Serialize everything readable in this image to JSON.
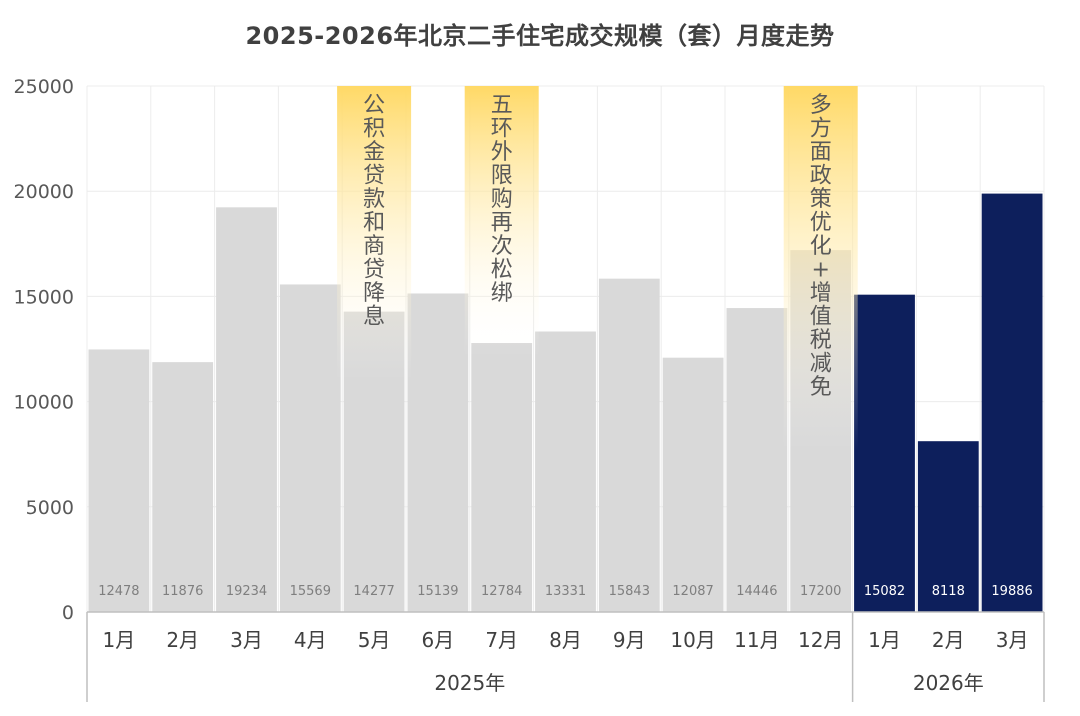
{
  "title": "2025-2026年北京二手住宅成交规模（套）月度走势",
  "chart_data": {
    "type": "bar",
    "title": "2025-2026年北京二手住宅成交规模（套）月度走势",
    "xlabel": "",
    "ylabel": "",
    "ylim": [
      0,
      25000
    ],
    "yticks": [
      0,
      5000,
      10000,
      15000,
      20000,
      25000
    ],
    "grid": true,
    "groups": [
      {
        "label": "2025年",
        "count": 12
      },
      {
        "label": "2026年",
        "count": 3
      }
    ],
    "categories": [
      "1月",
      "2月",
      "3月",
      "4月",
      "5月",
      "6月",
      "7月",
      "8月",
      "9月",
      "10月",
      "11月",
      "12月",
      "1月",
      "2月",
      "3月"
    ],
    "values": [
      12478,
      11876,
      19234,
      15569,
      14277,
      15139,
      12784,
      13331,
      15843,
      12087,
      14446,
      17200,
      15082,
      8118,
      19886
    ],
    "bar_colors": {
      "2025年": "#d9d9d9",
      "2026年": "#0d1f5c"
    },
    "value_label_colors": {
      "2025年": "#7f7f7f",
      "2026年": "#ffffff"
    },
    "annotations": [
      {
        "index": 4,
        "text": "公积金贷款和商贷降息"
      },
      {
        "index": 6,
        "text": "五环外限购再次松绑"
      },
      {
        "index": 11,
        "text": "多方面政策优化+增值税减免"
      }
    ],
    "annotation_color": "#ffd966"
  }
}
